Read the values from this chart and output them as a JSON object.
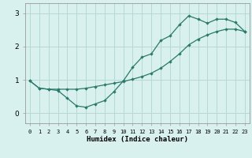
{
  "xlabel": "Humidex (Indice chaleur)",
  "xlim": [
    -0.5,
    23.5
  ],
  "ylim": [
    -0.3,
    3.3
  ],
  "xticks": [
    0,
    1,
    2,
    3,
    4,
    5,
    6,
    7,
    8,
    9,
    10,
    11,
    12,
    13,
    14,
    15,
    16,
    17,
    18,
    19,
    20,
    21,
    22,
    23
  ],
  "yticks": [
    0,
    1,
    2,
    3
  ],
  "background_color": "#d8f0ee",
  "grid_color": "#b8d8d4",
  "line_color": "#2a7a6a",
  "line1_x": [
    0,
    1,
    2,
    3,
    4,
    5,
    6,
    7,
    8,
    9,
    10,
    11,
    12,
    13,
    14,
    15,
    16,
    17,
    18,
    19,
    20,
    21,
    22,
    23
  ],
  "line1_y": [
    0.97,
    0.75,
    0.72,
    0.68,
    0.45,
    0.22,
    0.18,
    0.28,
    0.38,
    0.65,
    0.97,
    1.38,
    1.68,
    1.78,
    2.18,
    2.32,
    2.65,
    2.92,
    2.82,
    2.7,
    2.82,
    2.82,
    2.72,
    2.45
  ],
  "line2_x": [
    0,
    1,
    2,
    3,
    4,
    5,
    6,
    7,
    8,
    9,
    10,
    11,
    12,
    13,
    14,
    15,
    16,
    17,
    18,
    19,
    20,
    21,
    22,
    23
  ],
  "line2_y": [
    0.97,
    0.75,
    0.72,
    0.72,
    0.72,
    0.72,
    0.75,
    0.8,
    0.85,
    0.9,
    0.95,
    1.02,
    1.1,
    1.2,
    1.35,
    1.55,
    1.78,
    2.05,
    2.22,
    2.35,
    2.45,
    2.52,
    2.52,
    2.45
  ]
}
